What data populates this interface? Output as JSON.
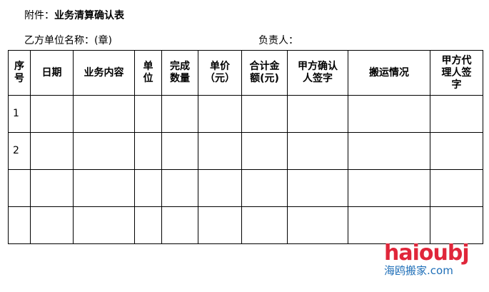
{
  "title_prefix": "附件：",
  "title": "业务清算确认表",
  "party_b_label": "乙方单位名称：(章)",
  "responsible_label": "负责人：",
  "table": {
    "headers": [
      "序\n号",
      "日期",
      "业务内容",
      "单\n位",
      "完成\n数量",
      "单价\n（元）",
      "合计金\n额(元)",
      "甲方确认\n人签字",
      "搬运情况",
      "甲方代\n理人签\n字"
    ],
    "rows": [
      [
        "1",
        "",
        "",
        "",
        "",
        "",
        "",
        "",
        "",
        ""
      ],
      [
        "2",
        "",
        "",
        "",
        "",
        "",
        "",
        "",
        "",
        ""
      ],
      [
        "",
        "",
        "",
        "",
        "",
        "",
        "",
        "",
        "",
        ""
      ],
      [
        "",
        "",
        "",
        "",
        "",
        "",
        "",
        "",
        "",
        ""
      ]
    ]
  },
  "watermark": {
    "line1": "haioubj",
    "line2": "海鸥搬家.com",
    "colors": {
      "red": "#e0263a",
      "blue": "#1f6fb8"
    }
  }
}
